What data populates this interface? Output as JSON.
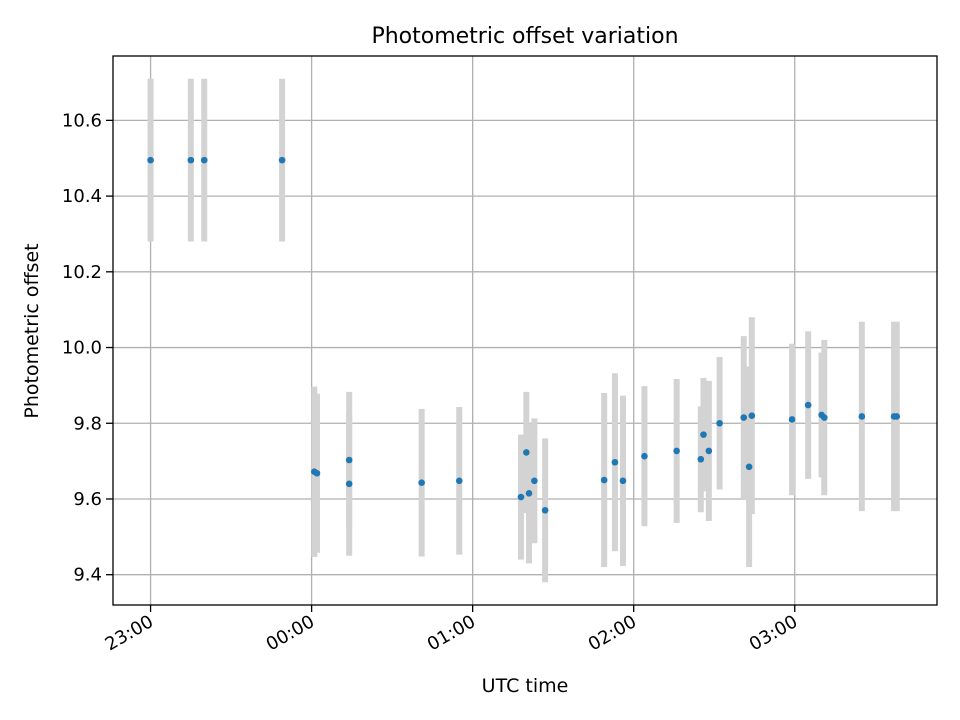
{
  "chart_data": {
    "type": "scatter",
    "title": "Photometric offset variation",
    "xlabel": "UTC time",
    "ylabel": "Photometric offset",
    "x_ticks": [
      "23:00",
      "00:00",
      "01:00",
      "02:00",
      "03:00"
    ],
    "y_ticks": [
      "9.4",
      "9.6",
      "9.8",
      "10.0",
      "10.2",
      "10.4",
      "10.6"
    ],
    "xlim": [
      "22:46",
      "27:53"
    ],
    "ylim": [
      9.32,
      10.77
    ],
    "grid": true,
    "colors": {
      "point": "#1f77b4",
      "errorbar": "#d3d3d3"
    },
    "series": [
      {
        "x": [
          "23:00",
          "23:15",
          "23:20",
          "23:49",
          "00:01",
          "00:02",
          "00:14",
          "00:14",
          "00:41",
          "00:55",
          "01:18",
          "01:20",
          "01:21",
          "01:23",
          "01:27",
          "01:49",
          "01:53",
          "01:56",
          "02:04",
          "02:16",
          "02:25",
          "02:26",
          "02:28",
          "02:32",
          "02:41",
          "02:43",
          "02:44",
          "02:59",
          "03:05",
          "03:10",
          "03:11",
          "03:25",
          "03:37",
          "03:38"
        ],
        "y": [
          10.495,
          10.495,
          10.495,
          10.495,
          9.672,
          9.668,
          9.64,
          9.703,
          9.643,
          9.648,
          9.605,
          9.723,
          9.615,
          9.648,
          9.57,
          9.65,
          9.697,
          9.648,
          9.713,
          9.727,
          9.705,
          9.77,
          9.727,
          9.8,
          9.815,
          9.685,
          9.82,
          9.81,
          9.848,
          9.822,
          9.815,
          9.818,
          9.818,
          9.818
        ],
        "yerr": [
          0.215,
          0.215,
          0.215,
          0.215,
          0.225,
          0.21,
          0.19,
          0.18,
          0.195,
          0.195,
          0.165,
          0.16,
          0.185,
          0.165,
          0.19,
          0.23,
          0.235,
          0.225,
          0.185,
          0.19,
          0.14,
          0.15,
          0.185,
          0.175,
          0.215,
          0.265,
          0.26,
          0.2,
          0.195,
          0.165,
          0.205,
          0.25,
          0.25,
          0.25
        ]
      }
    ]
  }
}
